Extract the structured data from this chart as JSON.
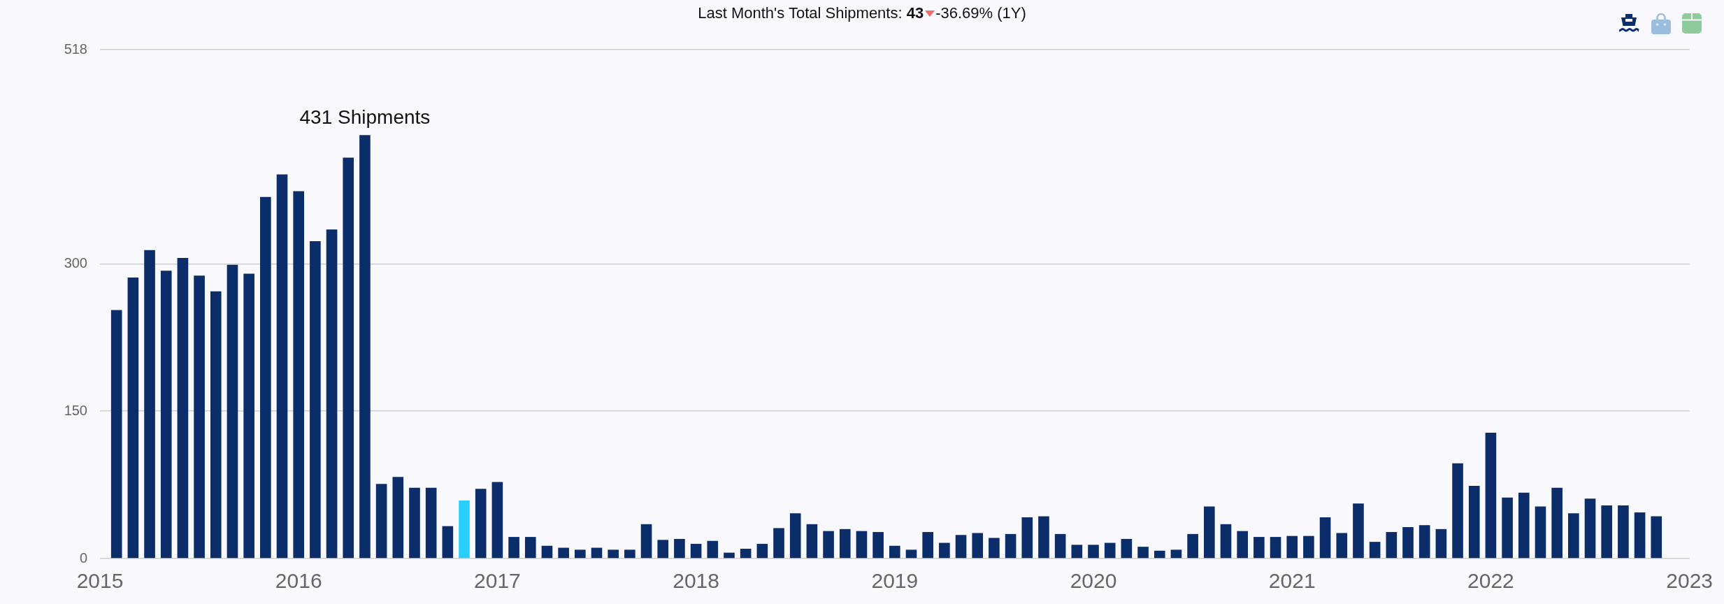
{
  "chart_data": {
    "type": "bar",
    "title": "Last Month's Total Shipments: 43",
    "subtitle": "-36.69% (1Y)",
    "x": [
      "2015-02",
      "2015-03",
      "2015-04",
      "2015-05",
      "2015-06",
      "2015-07",
      "2015-08",
      "2015-09",
      "2015-10",
      "2015-11",
      "2015-12",
      "2016-01",
      "2016-02",
      "2016-03",
      "2016-04",
      "2016-05",
      "2016-06",
      "2016-07",
      "2016-08",
      "2016-09",
      "2016-10",
      "2016-11",
      "2016-12",
      "2017-01",
      "2017-02",
      "2017-03",
      "2017-04",
      "2017-05",
      "2017-06",
      "2017-07",
      "2017-08",
      "2017-09",
      "2017-10",
      "2017-11",
      "2017-12",
      "2018-01",
      "2018-02",
      "2018-03",
      "2018-04",
      "2018-05",
      "2018-06",
      "2018-07",
      "2018-08",
      "2018-09",
      "2018-10",
      "2018-11",
      "2018-12",
      "2019-01",
      "2019-02",
      "2019-03",
      "2019-04",
      "2019-05",
      "2019-06",
      "2019-07",
      "2019-08",
      "2019-09",
      "2019-10",
      "2019-11",
      "2019-12",
      "2020-01",
      "2020-02",
      "2020-03",
      "2020-04",
      "2020-05",
      "2020-06",
      "2020-07",
      "2020-08",
      "2020-09",
      "2020-10",
      "2020-11",
      "2020-12",
      "2021-01",
      "2021-02",
      "2021-03",
      "2021-04",
      "2021-05",
      "2021-06",
      "2021-07",
      "2021-08",
      "2021-09",
      "2021-10",
      "2021-11",
      "2021-12",
      "2022-01",
      "2022-02",
      "2022-03",
      "2022-04",
      "2022-05",
      "2022-06",
      "2022-07",
      "2022-08",
      "2022-09",
      "2022-10",
      "2022-11"
    ],
    "values": [
      253,
      286,
      314,
      293,
      306,
      288,
      272,
      299,
      290,
      368,
      391,
      374,
      323,
      335,
      408,
      431,
      76,
      83,
      72,
      72,
      33,
      59,
      71,
      78,
      22,
      22,
      13,
      11,
      9,
      11,
      9,
      9,
      35,
      19,
      20,
      15,
      18,
      6,
      10,
      15,
      31,
      46,
      35,
      28,
      30,
      28,
      27,
      13,
      9,
      27,
      16,
      24,
      26,
      21,
      25,
      42,
      43,
      25,
      14,
      14,
      16,
      20,
      12,
      8,
      9,
      25,
      53,
      35,
      28,
      22,
      22,
      23,
      23,
      42,
      26,
      56,
      17,
      27,
      32,
      34,
      30,
      97,
      74,
      128,
      62,
      67,
      53,
      72,
      46,
      61,
      54,
      54,
      47,
      43
    ],
    "colors": [
      "#0b2d6a",
      "#0b2d6a",
      "#0b2d6a",
      "#0b2d6a",
      "#0b2d6a",
      "#0b2d6a",
      "#0b2d6a",
      "#0b2d6a",
      "#0b2d6a",
      "#0b2d6a",
      "#0b2d6a",
      "#0b2d6a",
      "#0b2d6a",
      "#0b2d6a",
      "#0b2d6a",
      "#0b2d6a",
      "#0b2d6a",
      "#0b2d6a",
      "#0b2d6a",
      "#0b2d6a",
      "#0b2d6a",
      "#29cffc",
      "#0b2d6a",
      "#0b2d6a",
      "#0b2d6a",
      "#0b2d6a",
      "#0b2d6a",
      "#0b2d6a",
      "#0b2d6a",
      "#0b2d6a",
      "#0b2d6a",
      "#0b2d6a",
      "#0b2d6a",
      "#0b2d6a",
      "#0b2d6a",
      "#0b2d6a",
      "#0b2d6a",
      "#0b2d6a",
      "#0b2d6a",
      "#0b2d6a",
      "#0b2d6a",
      "#0b2d6a",
      "#0b2d6a",
      "#0b2d6a",
      "#0b2d6a",
      "#0b2d6a",
      "#0b2d6a",
      "#0b2d6a",
      "#0b2d6a",
      "#0b2d6a",
      "#0b2d6a",
      "#0b2d6a",
      "#0b2d6a",
      "#0b2d6a",
      "#0b2d6a",
      "#0b2d6a",
      "#0b2d6a",
      "#0b2d6a",
      "#0b2d6a",
      "#0b2d6a",
      "#0b2d6a",
      "#0b2d6a",
      "#0b2d6a",
      "#0b2d6a",
      "#0b2d6a",
      "#0b2d6a",
      "#0b2d6a",
      "#0b2d6a",
      "#0b2d6a",
      "#0b2d6a",
      "#0b2d6a",
      "#0b2d6a",
      "#0b2d6a",
      "#0b2d6a",
      "#0b2d6a",
      "#0b2d6a",
      "#0b2d6a",
      "#0b2d6a",
      "#0b2d6a",
      "#0b2d6a",
      "#0b2d6a",
      "#0b2d6a",
      "#0b2d6a",
      "#0b2d6a",
      "#0b2d6a",
      "#0b2d6a",
      "#0b2d6a",
      "#0b2d6a",
      "#0b2d6a",
      "#0b2d6a",
      "#0b2d6a",
      "#0b2d6a",
      "#0b2d6a",
      "#0b2d6a"
    ],
    "annotations": [
      {
        "text": "431 Shipments",
        "x": "2016-05",
        "y": 431
      }
    ],
    "xlim": [
      "2015-01",
      "2023-01"
    ],
    "xticks": [
      "2015",
      "2016",
      "2017",
      "2018",
      "2019",
      "2020",
      "2021",
      "2022",
      "2023"
    ],
    "ylim": [
      0,
      518
    ],
    "yticks": [
      0,
      150,
      300,
      518
    ],
    "grid": "y"
  }
}
